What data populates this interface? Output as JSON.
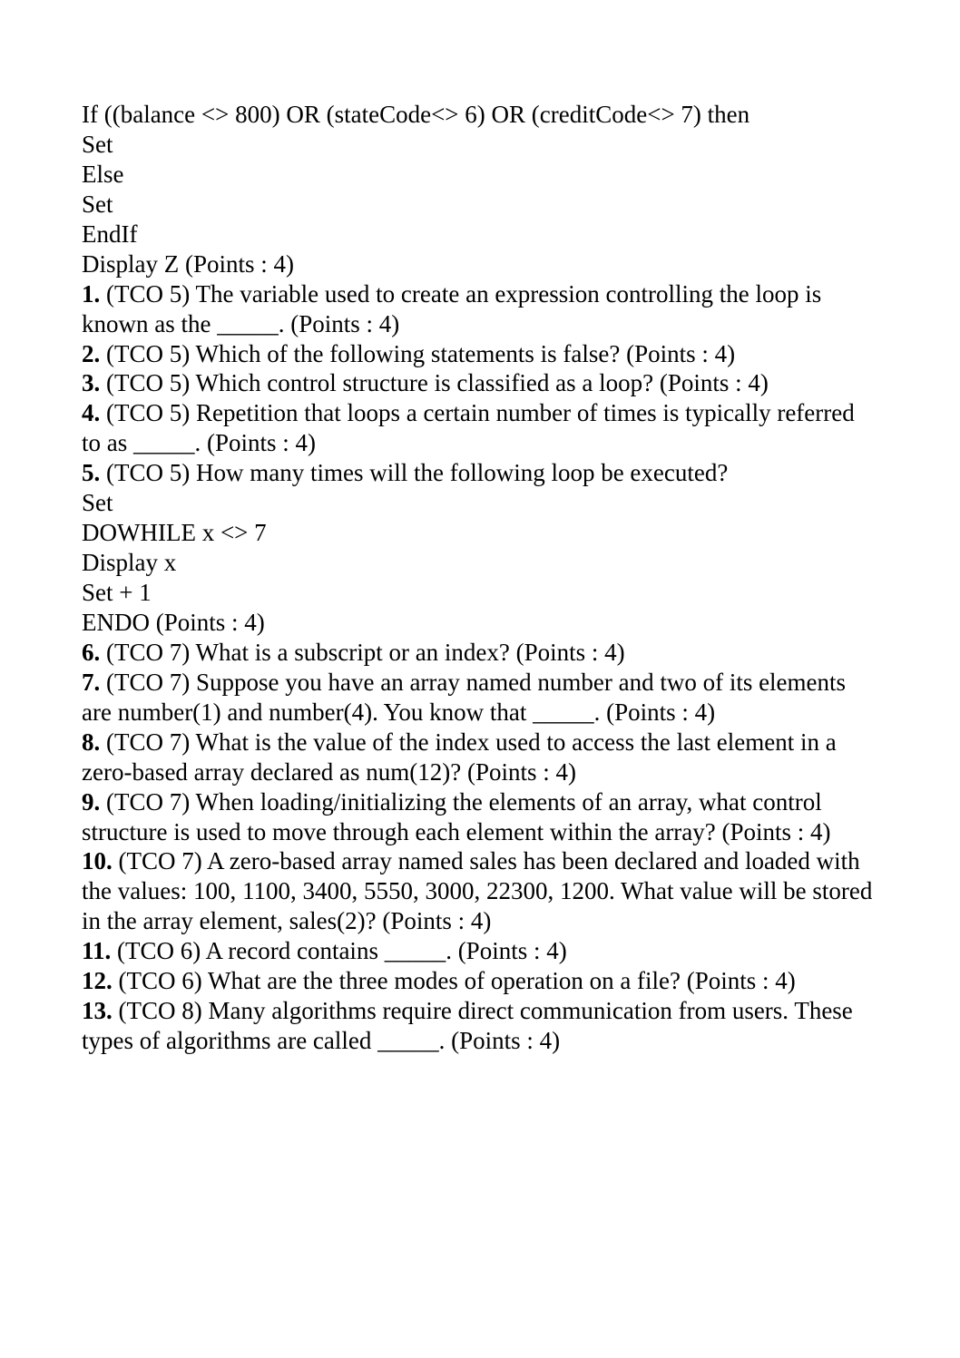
{
  "intro": {
    "l1": "If ((balance <> 800) OR (stateCode<> 6) OR (creditCode<> 7) then",
    "l2": "Set",
    "l3": "Else",
    "l4": "Set",
    "l5": "EndIf",
    "l6": "Display Z (Points : 4)"
  },
  "q1": {
    "num": "1.",
    "text": " (TCO 5) The variable used to create an expression controlling the loop is known as the _____. (Points : 4)"
  },
  "q2": {
    "num": "2.",
    "text": " (TCO 5) Which of the following statements is false? (Points : 4)"
  },
  "q3": {
    "num": "3.",
    "text": " (TCO 5) Which control structure is classified as a loop? (Points : 4)"
  },
  "q4": {
    "num": "4.",
    "text": " (TCO 5) Repetition that loops a certain number of times is typically referred to as _____. (Points : 4)"
  },
  "q5": {
    "num": "5.",
    "text": " (TCO 5) How many times will the following loop be executed?",
    "c1": "Set",
    "c2": "DOWHILE x <> 7",
    "c3": "Display x",
    "c4": "Set + 1",
    "c5": "ENDO (Points : 4)"
  },
  "q6": {
    "num": "6.",
    "text": " (TCO 7) What is a subscript or an index? (Points : 4)"
  },
  "q7": {
    "num": "7.",
    "text": " (TCO 7) Suppose you have an array named number and two of its elements are number(1) and number(4). You know that _____. (Points : 4)"
  },
  "q8": {
    "num": "8.",
    "text": " (TCO 7) What is the value of the index used to access the last element in a zero-based array declared as num(12)? (Points : 4)"
  },
  "q9": {
    "num": "9.",
    "text": " (TCO 7) When loading/initializing the elements of an array, what control structure is used to move through each element within the array? (Points : 4)"
  },
  "q10": {
    "num": "10.",
    "text": " (TCO 7) A zero-based array named sales has been declared and loaded with the values: 100, 1100, 3400, 5550, 3000, 22300, 1200. What value will be stored in the array element, sales(2)? (Points : 4)"
  },
  "q11": {
    "num": "11.",
    "text": " (TCO 6) A record contains _____. (Points : 4)"
  },
  "q12": {
    "num": "12.",
    "text": " (TCO 6) What are the three modes of operation on a file? (Points : 4)"
  },
  "q13": {
    "num": "13.",
    "text": " (TCO 8) Many algorithms require direct communication from users. These types of algorithms are called _____. (Points : 4)"
  }
}
